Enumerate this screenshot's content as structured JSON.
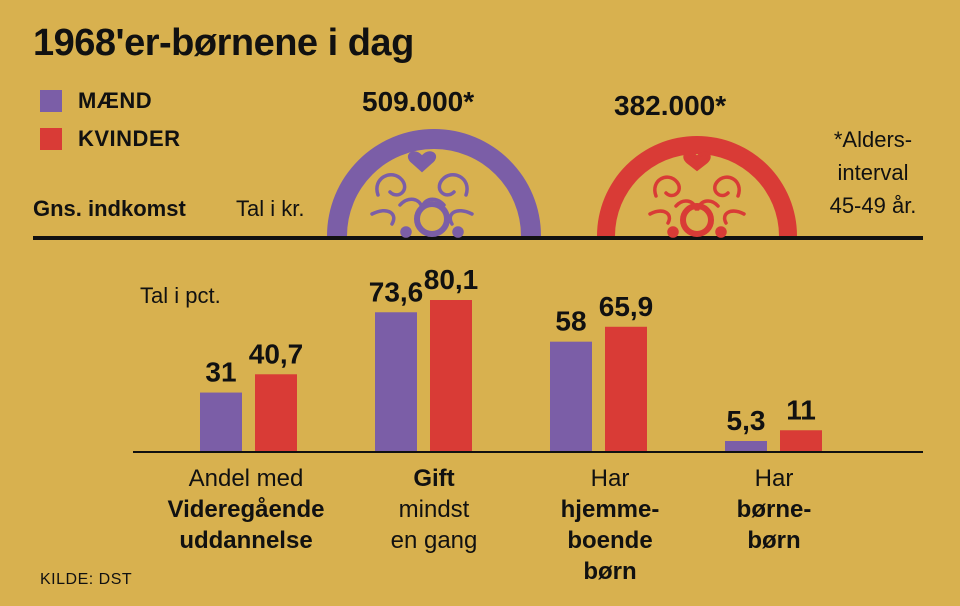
{
  "title": "1968'er-børnene i dag",
  "legend": [
    {
      "label": "MÆND",
      "color": "#7b5ea7"
    },
    {
      "label": "KVINDER",
      "color": "#d93b36"
    }
  ],
  "income": {
    "label": "Gns. indkomst",
    "unit": "Tal i kr.",
    "men_value": "509.000*",
    "women_value": "382.000*",
    "footnote": [
      "*Alders-",
      "interval",
      "45-49 år."
    ]
  },
  "percent_unit": "Tal i pct.",
  "source": "KILDE: DST",
  "colors": {
    "background": "#d8b14f",
    "men": "#7b5ea7",
    "women": "#d93b36",
    "axis": "#111111"
  },
  "chart_data": [
    {
      "type": "area",
      "title": "Gns. indkomst",
      "unit": "Tal i kr.",
      "categories": [
        "MÆND",
        "KVINDER"
      ],
      "values": [
        509000,
        382000
      ]
    },
    {
      "type": "bar",
      "unit": "Tal i pct.",
      "categories": [
        "Andel med Videregående uddannelse",
        "Gift mindst en gang",
        "Har hjemmeboende børn",
        "Har børnebørn"
      ],
      "series": [
        {
          "name": "MÆND",
          "values": [
            31,
            73.6,
            58,
            5.3
          ],
          "labels": [
            "31",
            "73,6",
            "58",
            "5,3"
          ]
        },
        {
          "name": "KVINDER",
          "values": [
            40.7,
            80.1,
            65.9,
            11
          ],
          "labels": [
            "40,7",
            "80,1",
            "65,9",
            "11"
          ]
        }
      ],
      "ylim": [
        0,
        100
      ]
    }
  ],
  "category_labels": [
    {
      "lines": [
        {
          "text": "Andel med",
          "bold": false
        },
        {
          "text": "Videregående",
          "bold": true
        },
        {
          "text": "uddannelse",
          "bold": true
        }
      ]
    },
    {
      "lines": [
        {
          "text": "Gift",
          "bold": true
        },
        {
          "text": "mindst",
          "bold": false
        },
        {
          "text": "en gang",
          "bold": false
        }
      ]
    },
    {
      "lines": [
        {
          "text": "Har",
          "bold": false
        },
        {
          "text": "hjemme-",
          "bold": true
        },
        {
          "text": "boende",
          "bold": true
        },
        {
          "text": "børn",
          "bold": true
        }
      ]
    },
    {
      "lines": [
        {
          "text": "Har",
          "bold": false
        },
        {
          "text": "børne-",
          "bold": true
        },
        {
          "text": "børn",
          "bold": true
        }
      ]
    }
  ]
}
